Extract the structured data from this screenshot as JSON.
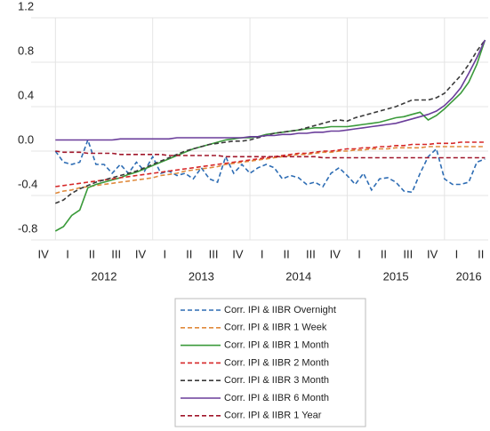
{
  "chart_data": {
    "type": "line",
    "x": [
      2012,
      2012.083,
      2012.167,
      2012.25,
      2012.333,
      2012.417,
      2012.5,
      2012.583,
      2012.667,
      2012.75,
      2012.833,
      2012.917,
      2013,
      2013.083,
      2013.167,
      2013.25,
      2013.333,
      2013.417,
      2013.5,
      2013.583,
      2013.667,
      2013.75,
      2013.833,
      2013.917,
      2014,
      2014.083,
      2014.167,
      2014.25,
      2014.333,
      2014.417,
      2014.5,
      2014.583,
      2014.667,
      2014.75,
      2014.833,
      2014.917,
      2015,
      2015.083,
      2015.167,
      2015.25,
      2015.333,
      2015.417,
      2015.5,
      2015.583,
      2015.667,
      2015.75,
      2015.833,
      2015.917,
      2016,
      2016.083,
      2016.167,
      2016.25,
      2016.333,
      2016.417
    ],
    "series": [
      {
        "name": "Corr. IPI & IIBR Overnight",
        "color": "#2e6db4",
        "dash": true,
        "values": [
          0.0,
          -0.1,
          -0.12,
          -0.1,
          0.1,
          -0.12,
          -0.12,
          -0.2,
          -0.12,
          -0.2,
          -0.1,
          -0.18,
          -0.05,
          -0.2,
          -0.18,
          -0.22,
          -0.2,
          -0.25,
          -0.15,
          -0.25,
          -0.28,
          -0.05,
          -0.2,
          -0.12,
          -0.2,
          -0.15,
          -0.12,
          -0.15,
          -0.25,
          -0.22,
          -0.24,
          -0.3,
          -0.28,
          -0.32,
          -0.2,
          -0.15,
          -0.22,
          -0.3,
          -0.2,
          -0.35,
          -0.25,
          -0.24,
          -0.28,
          -0.36,
          -0.37,
          -0.2,
          -0.05,
          0.02,
          -0.25,
          -0.3,
          -0.3,
          -0.28,
          -0.1,
          -0.07
        ]
      },
      {
        "name": "Corr. IPI & IIBR 1 Week",
        "color": "#e08a3c",
        "dash": true,
        "values": [
          -0.38,
          -0.36,
          -0.35,
          -0.33,
          -0.32,
          -0.31,
          -0.3,
          -0.29,
          -0.28,
          -0.27,
          -0.26,
          -0.25,
          -0.24,
          -0.22,
          -0.21,
          -0.2,
          -0.18,
          -0.17,
          -0.16,
          -0.15,
          -0.14,
          -0.12,
          -0.11,
          -0.1,
          -0.09,
          -0.08,
          -0.07,
          -0.06,
          -0.05,
          -0.04,
          -0.03,
          -0.03,
          -0.02,
          -0.01,
          -0.01,
          0.0,
          0.0,
          0.01,
          0.01,
          0.02,
          0.02,
          0.02,
          0.03,
          0.03,
          0.03,
          0.03,
          0.04,
          0.04,
          0.04,
          0.04,
          0.04,
          0.04,
          0.04,
          0.04
        ]
      },
      {
        "name": "Corr. IPI & IIBR 1 Month",
        "color": "#3a9a3a",
        "dash": false,
        "values": [
          -0.72,
          -0.68,
          -0.58,
          -0.53,
          -0.33,
          -0.3,
          -0.28,
          -0.26,
          -0.24,
          -0.21,
          -0.19,
          -0.16,
          -0.13,
          -0.1,
          -0.07,
          -0.04,
          -0.01,
          0.02,
          0.04,
          0.06,
          0.08,
          0.1,
          0.11,
          0.12,
          0.12,
          0.13,
          0.15,
          0.16,
          0.17,
          0.18,
          0.19,
          0.2,
          0.21,
          0.21,
          0.22,
          0.22,
          0.22,
          0.23,
          0.24,
          0.25,
          0.26,
          0.28,
          0.3,
          0.31,
          0.33,
          0.35,
          0.28,
          0.32,
          0.38,
          0.45,
          0.52,
          0.62,
          0.78,
          1.0
        ]
      },
      {
        "name": "Corr. IPI & IIBR 2 Month",
        "color": "#d62728",
        "dash": true,
        "values": [
          -0.32,
          -0.31,
          -0.3,
          -0.29,
          -0.28,
          -0.27,
          -0.26,
          -0.25,
          -0.24,
          -0.23,
          -0.22,
          -0.21,
          -0.2,
          -0.19,
          -0.18,
          -0.17,
          -0.16,
          -0.15,
          -0.14,
          -0.13,
          -0.12,
          -0.11,
          -0.1,
          -0.09,
          -0.08,
          -0.07,
          -0.06,
          -0.05,
          -0.04,
          -0.03,
          -0.02,
          -0.02,
          -0.01,
          0.0,
          0.0,
          0.01,
          0.02,
          0.02,
          0.03,
          0.03,
          0.04,
          0.04,
          0.05,
          0.05,
          0.06,
          0.06,
          0.06,
          0.07,
          0.07,
          0.07,
          0.08,
          0.08,
          0.08,
          0.08
        ]
      },
      {
        "name": "Corr. IPI & IIBR 3 Month",
        "color": "#3a3a3a",
        "dash": true,
        "values": [
          -0.47,
          -0.44,
          -0.38,
          -0.34,
          -0.31,
          -0.28,
          -0.26,
          -0.24,
          -0.22,
          -0.2,
          -0.18,
          -0.15,
          -0.12,
          -0.09,
          -0.06,
          -0.03,
          0.0,
          0.02,
          0.04,
          0.06,
          0.07,
          0.08,
          0.09,
          0.09,
          0.1,
          0.12,
          0.14,
          0.16,
          0.17,
          0.18,
          0.19,
          0.21,
          0.23,
          0.25,
          0.27,
          0.28,
          0.27,
          0.3,
          0.32,
          0.34,
          0.36,
          0.38,
          0.4,
          0.43,
          0.46,
          0.46,
          0.46,
          0.48,
          0.52,
          0.6,
          0.68,
          0.78,
          0.9,
          1.0
        ]
      },
      {
        "name": "Corr. IPI & IIBR 6 Month",
        "color": "#6a3d9a",
        "dash": false,
        "values": [
          0.1,
          0.1,
          0.1,
          0.1,
          0.1,
          0.1,
          0.1,
          0.1,
          0.11,
          0.11,
          0.11,
          0.11,
          0.11,
          0.11,
          0.11,
          0.12,
          0.12,
          0.12,
          0.12,
          0.12,
          0.12,
          0.12,
          0.12,
          0.12,
          0.13,
          0.13,
          0.14,
          0.14,
          0.15,
          0.15,
          0.16,
          0.16,
          0.17,
          0.17,
          0.18,
          0.18,
          0.19,
          0.2,
          0.21,
          0.22,
          0.23,
          0.24,
          0.25,
          0.27,
          0.29,
          0.31,
          0.33,
          0.36,
          0.41,
          0.48,
          0.57,
          0.7,
          0.84,
          1.0
        ]
      },
      {
        "name": "Corr. IPI & IIBR 1 Year",
        "color": "#a0162a",
        "dash": true,
        "values": [
          0.0,
          -0.01,
          -0.01,
          -0.01,
          -0.02,
          -0.02,
          -0.02,
          -0.02,
          -0.03,
          -0.03,
          -0.03,
          -0.03,
          -0.03,
          -0.03,
          -0.04,
          -0.04,
          -0.04,
          -0.04,
          -0.04,
          -0.04,
          -0.04,
          -0.05,
          -0.05,
          -0.05,
          -0.05,
          -0.05,
          -0.05,
          -0.05,
          -0.05,
          -0.05,
          -0.05,
          -0.05,
          -0.05,
          -0.06,
          -0.06,
          -0.06,
          -0.06,
          -0.06,
          -0.06,
          -0.06,
          -0.06,
          -0.06,
          -0.06,
          -0.06,
          -0.06,
          -0.06,
          -0.06,
          -0.06,
          -0.06,
          -0.06,
          -0.06,
          -0.06,
          -0.06,
          -0.06
        ]
      }
    ],
    "xlim": [
      2011.75,
      2016.45
    ],
    "ylim": [
      -0.8,
      1.2
    ],
    "yticks": [
      -0.8,
      -0.4,
      {
        "value": 0,
        "label": "0.0"
      },
      0.4,
      0.8,
      1.2
    ],
    "xticks": [
      {
        "value": 2011.875,
        "label": "IV"
      },
      {
        "value": 2012.125,
        "label": "I"
      },
      {
        "value": 2012.375,
        "label": "II"
      },
      {
        "value": 2012.625,
        "label": "III"
      },
      {
        "value": 2012.875,
        "label": "IV"
      },
      {
        "value": 2013.125,
        "label": "I"
      },
      {
        "value": 2013.375,
        "label": "II"
      },
      {
        "value": 2013.625,
        "label": "III"
      },
      {
        "value": 2013.875,
        "label": "IV"
      },
      {
        "value": 2014.125,
        "label": "I"
      },
      {
        "value": 2014.375,
        "label": "II"
      },
      {
        "value": 2014.625,
        "label": "III"
      },
      {
        "value": 2014.875,
        "label": "IV"
      },
      {
        "value": 2015.125,
        "label": "I"
      },
      {
        "value": 2015.375,
        "label": "II"
      },
      {
        "value": 2015.625,
        "label": "III"
      },
      {
        "value": 2015.875,
        "label": "IV"
      },
      {
        "value": 2016.125,
        "label": "I"
      },
      {
        "value": 2016.375,
        "label": "II"
      }
    ],
    "year_ticks": [
      {
        "value": 2012.5,
        "label": "2012"
      },
      {
        "value": 2013.5,
        "label": "2013"
      },
      {
        "value": 2014.5,
        "label": "2014"
      },
      {
        "value": 2015.5,
        "label": "2015"
      },
      {
        "value": 2016.25,
        "label": "2016"
      }
    ],
    "xgrid": [
      2012,
      2013,
      2014,
      2015,
      2016
    ],
    "grid": true
  }
}
